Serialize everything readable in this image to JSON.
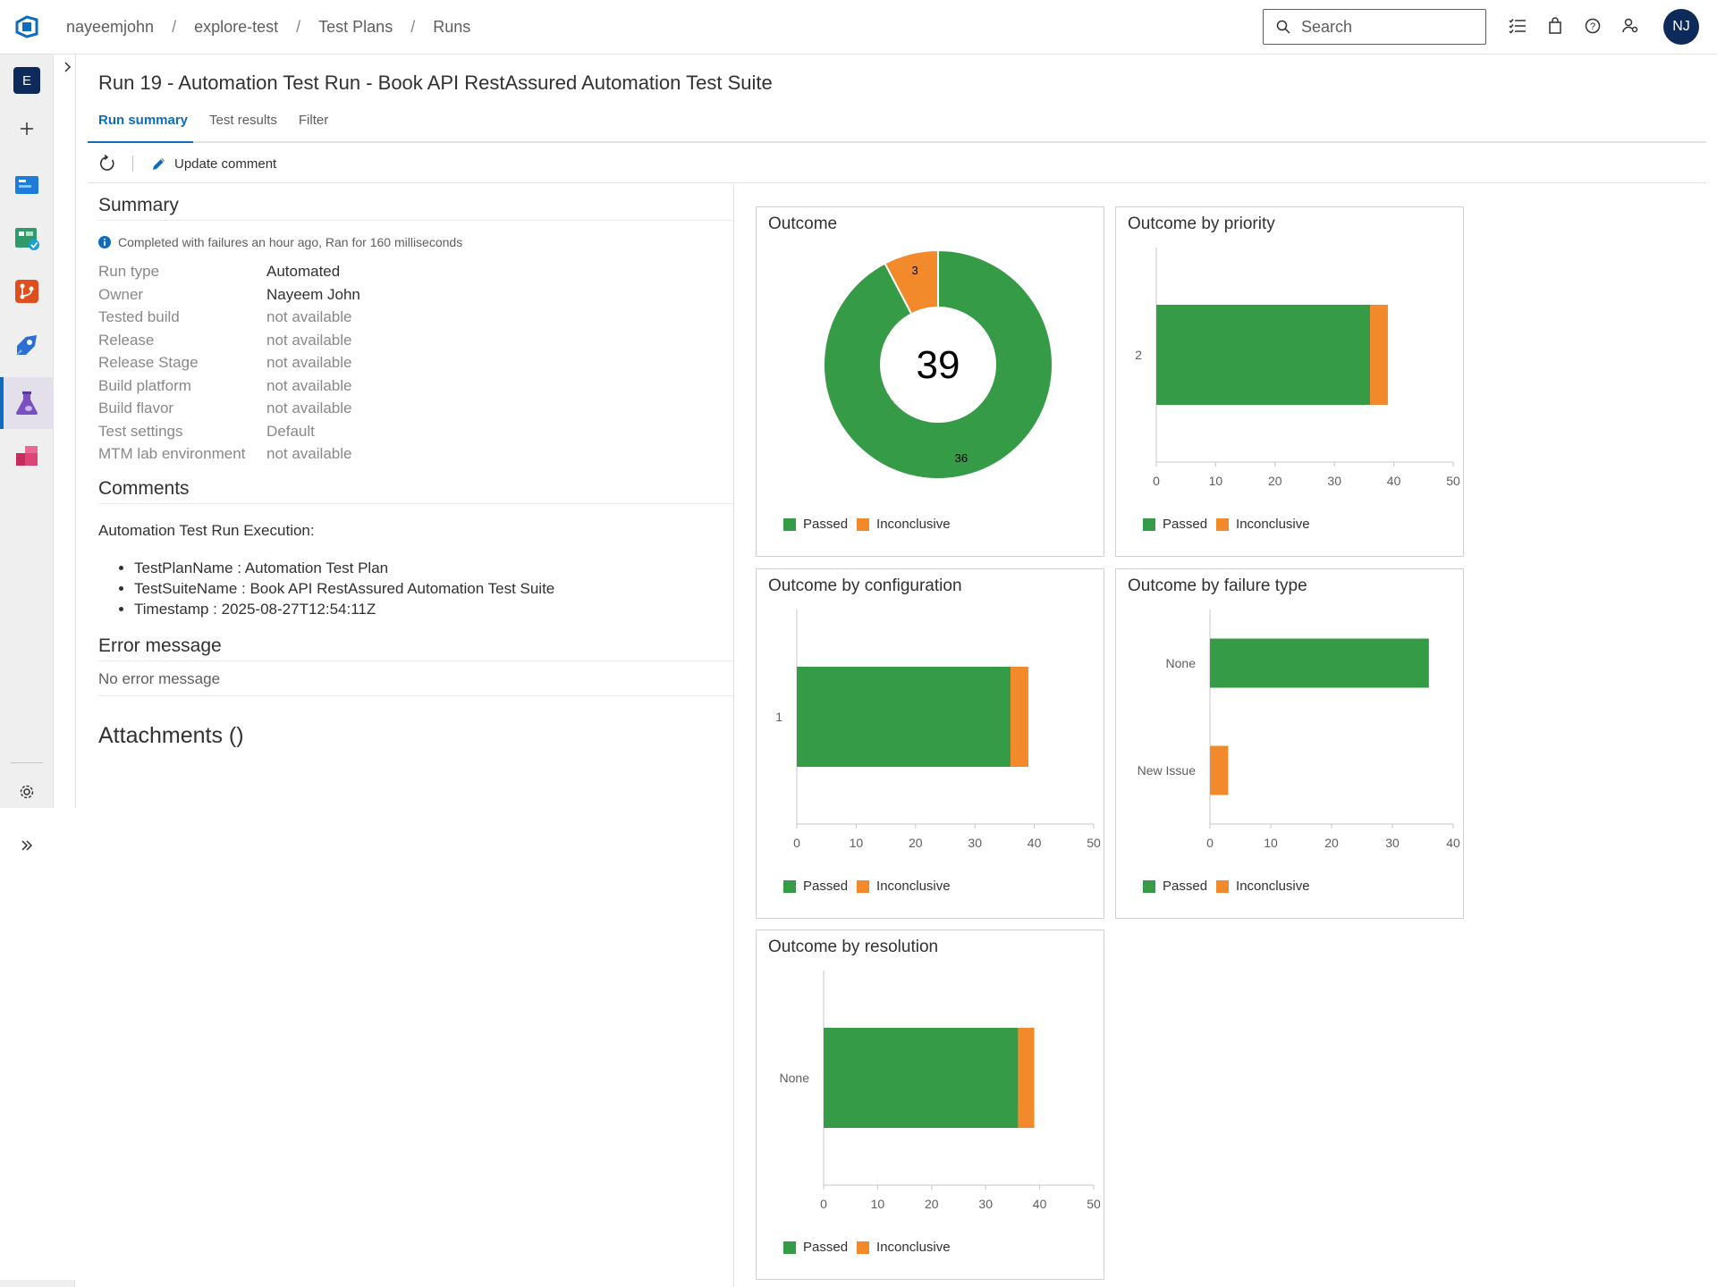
{
  "colors": {
    "passed": "#359b47",
    "inconclusive": "#f2892a",
    "accent": "#0f6cbd",
    "project_badge": "#0e2a5a"
  },
  "breadcrumb": [
    "nayeemjohn",
    "explore-test",
    "Test Plans",
    "Runs"
  ],
  "search": {
    "placeholder": "Search"
  },
  "user": {
    "initials": "NJ"
  },
  "project": {
    "initial": "E"
  },
  "page": {
    "title": "Run 19 - Automation Test Run - Book API RestAssured Automation Test Suite"
  },
  "tabs": [
    "Run summary",
    "Test results",
    "Filter"
  ],
  "toolbar": {
    "update_comment": "Update comment"
  },
  "summary": {
    "heading": "Summary",
    "status": "Completed with failures an hour ago, Ran for 160 milliseconds",
    "rows": [
      {
        "key": "Run type",
        "value": "Automated"
      },
      {
        "key": "Owner",
        "value": "Nayeem John"
      },
      {
        "key": "Tested build",
        "value": "not available"
      },
      {
        "key": "Release",
        "value": "not available"
      },
      {
        "key": "Release Stage",
        "value": "not available"
      },
      {
        "key": "Build platform",
        "value": "not available"
      },
      {
        "key": "Build flavor",
        "value": "not available"
      },
      {
        "key": "Test settings",
        "value": "Default"
      },
      {
        "key": "MTM lab environment",
        "value": "not available"
      }
    ]
  },
  "comments": {
    "heading": "Comments",
    "intro": "Automation Test Run Execution:",
    "items": [
      "TestPlanName : Automation Test Plan",
      "TestSuiteName : Book API RestAssured Automation Test Suite",
      "Timestamp : 2025-08-27T12:54:11Z"
    ]
  },
  "error": {
    "heading": "Error message",
    "message": "No error message"
  },
  "attachments": {
    "heading": "Attachments ()"
  },
  "legend": {
    "passed": "Passed",
    "inconclusive": "Inconclusive"
  },
  "chart_data": [
    {
      "type": "pie",
      "title": "Outcome",
      "center_label": "39",
      "categories": [
        "Passed",
        "Inconclusive"
      ],
      "values": [
        36,
        3
      ]
    },
    {
      "type": "bar",
      "title": "Outcome by priority",
      "categories": [
        "2"
      ],
      "series": [
        {
          "name": "Passed",
          "values": [
            36
          ]
        },
        {
          "name": "Inconclusive",
          "values": [
            3
          ]
        }
      ],
      "xlim": [
        0,
        50
      ],
      "ticks": [
        0,
        10,
        20,
        30,
        40,
        50
      ]
    },
    {
      "type": "bar",
      "title": "Outcome by configuration",
      "categories": [
        "1"
      ],
      "series": [
        {
          "name": "Passed",
          "values": [
            36
          ]
        },
        {
          "name": "Inconclusive",
          "values": [
            3
          ]
        }
      ],
      "xlim": [
        0,
        50
      ],
      "ticks": [
        0,
        10,
        20,
        30,
        40,
        50
      ]
    },
    {
      "type": "bar",
      "title": "Outcome by failure type",
      "categories": [
        "None",
        "New Issue"
      ],
      "series": [
        {
          "name": "Passed",
          "values": [
            36,
            0
          ]
        },
        {
          "name": "Inconclusive",
          "values": [
            0,
            3
          ]
        }
      ],
      "xlim": [
        0,
        40
      ],
      "ticks": [
        0,
        10,
        20,
        30,
        40
      ]
    },
    {
      "type": "bar",
      "title": "Outcome by resolution",
      "categories": [
        "None"
      ],
      "series": [
        {
          "name": "Passed",
          "values": [
            36
          ]
        },
        {
          "name": "Inconclusive",
          "values": [
            3
          ]
        }
      ],
      "xlim": [
        0,
        50
      ],
      "ticks": [
        0,
        10,
        20,
        30,
        40,
        50
      ]
    }
  ]
}
